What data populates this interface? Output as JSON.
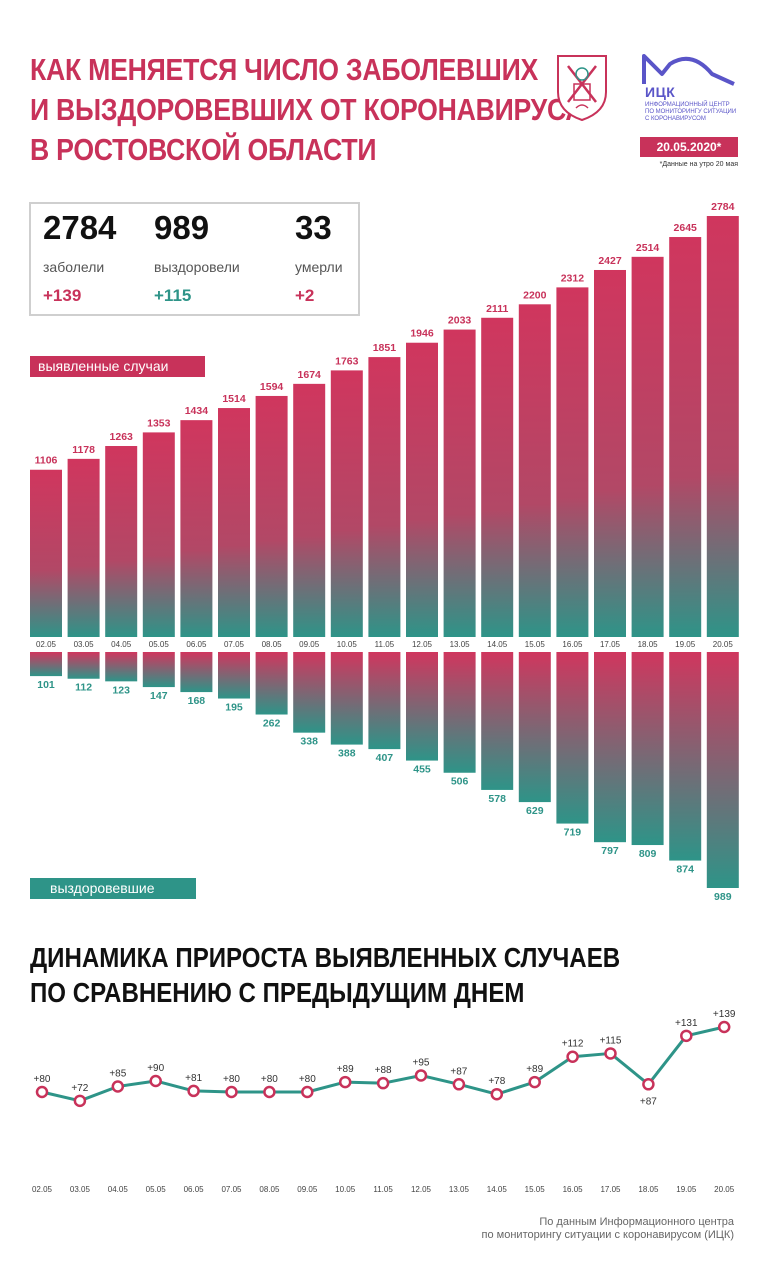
{
  "header": {
    "title_lines": [
      "КАК МЕНЯЕТСЯ ЧИСЛО ЗАБОЛЕВШИХ",
      "И ВЫЗДОРОВЕВШИХ ОТ КОРОНАВИРУСА",
      "В РОСТОВСКОЙ ОБЛАСТИ"
    ],
    "logo_name": "ИЦК",
    "logo_sub": [
      "ИНФОРМАЦИОННЫЙ ЦЕНТР",
      "ПО МОНИТОРИНГУ СИТУАЦИИ",
      "С КОРОНАВИРУСОМ"
    ],
    "date_badge": "20.05.2020*",
    "footnote": "*Данные на утро 20 мая"
  },
  "stats": [
    {
      "value": "2784",
      "label": "заболели",
      "delta": "+139",
      "color": "#c8325a"
    },
    {
      "value": "989",
      "label": "выздоровели",
      "delta": "+115",
      "color": "#2e9488"
    },
    {
      "value": "33",
      "label": "умерли",
      "delta": "+2",
      "color": "#c8325a"
    }
  ],
  "tags": {
    "cases": "выявленные случаи",
    "recovered": "выздоровевшие"
  },
  "colors": {
    "accent": "#c8325a",
    "teal": "#2e9488"
  },
  "chart_data": [
    {
      "type": "bar",
      "categories": [
        "02.05",
        "03.05",
        "04.05",
        "05.05",
        "06.05",
        "07.05",
        "08.05",
        "09.05",
        "10.05",
        "11.05",
        "12.05",
        "13.05",
        "14.05",
        "15.05",
        "16.05",
        "17.05",
        "18.05",
        "19.05",
        "20.05"
      ],
      "series": [
        {
          "name": "выявленные случаи",
          "values": [
            1106,
            1178,
            1263,
            1353,
            1434,
            1514,
            1594,
            1674,
            1763,
            1851,
            1946,
            2033,
            2111,
            2200,
            2312,
            2427,
            2514,
            2645,
            2784
          ]
        },
        {
          "name": "выздоровевшие",
          "values": [
            101,
            112,
            123,
            147,
            168,
            195,
            262,
            338,
            388,
            407,
            455,
            506,
            578,
            629,
            719,
            797,
            809,
            874,
            989
          ]
        }
      ]
    },
    {
      "type": "line",
      "title_lines": [
        "ДИНАМИКА ПРИРОСТА ВЫЯВЛЕННЫХ СЛУЧАЕВ",
        "ПО СРАВНЕНИЮ С ПРЕДЫДУЩИМ ДНЕМ"
      ],
      "categories": [
        "02.05",
        "03.05",
        "04.05",
        "05.05",
        "06.05",
        "07.05",
        "08.05",
        "09.05",
        "10.05",
        "11.05",
        "12.05",
        "13.05",
        "14.05",
        "15.05",
        "16.05",
        "17.05",
        "18.05",
        "19.05",
        "20.05"
      ],
      "values": [
        80,
        72,
        85,
        90,
        81,
        80,
        80,
        80,
        89,
        88,
        95,
        87,
        78,
        89,
        112,
        115,
        87,
        131,
        139
      ],
      "labels": [
        "+80",
        "+72",
        "+85",
        "+90",
        "+81",
        "+80",
        "+80",
        "+80",
        "+89",
        "+88",
        "+95",
        "+87",
        "+78",
        "+89",
        "+112",
        "+115",
        "+87",
        "+131",
        "+139"
      ]
    }
  ],
  "source_lines": [
    "По данным Информационного центра",
    "по мониторингу ситуации с коронавирусом (ИЦК)"
  ]
}
